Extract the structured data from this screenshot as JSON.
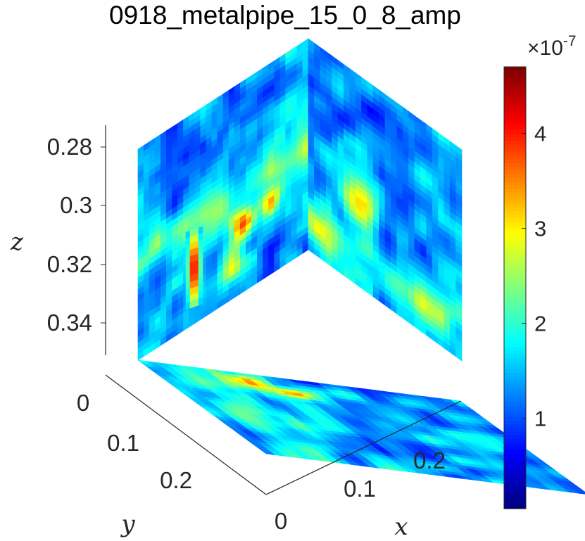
{
  "chart_data": {
    "type": "heatmap",
    "subtype": "3d-orthogonal-slices",
    "title": "0918_metalpipe_15_0_8_amp",
    "xlabel": "x",
    "ylabel": "y",
    "zlabel": "z",
    "x_ticks": [
      "0",
      "0.1",
      "0.2"
    ],
    "y_ticks": [
      "0",
      "0.1",
      "0.2"
    ],
    "z_ticks": [
      "0.28",
      "0.3",
      "0.32",
      "0.34"
    ],
    "z_direction": "reversed",
    "colormap": "jet",
    "colorbar": {
      "ticks": [
        "1",
        "2",
        "3",
        "4"
      ],
      "multiplier_label": "×10",
      "multiplier_exponent": "-7",
      "range": [
        0.05,
        4.7
      ]
    },
    "slices": [
      "x-z back wall",
      "y-z left wall",
      "x-y floor"
    ],
    "hotspots": [
      {
        "slice": "y-z left wall",
        "value": 4.3
      },
      {
        "slice": "x-z back wall",
        "value": 4.0
      },
      {
        "slice": "x-z back wall",
        "value": 3.4
      },
      {
        "slice": "x-y floor",
        "value": 3.6
      }
    ]
  }
}
